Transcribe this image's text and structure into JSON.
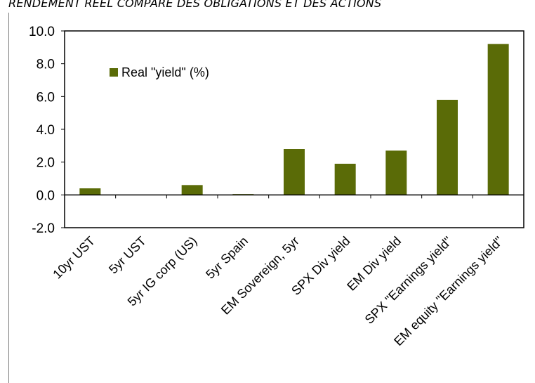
{
  "page": {
    "title": "RENDEMENT RÉEL COMPARÉ DES OBLIGATIONS ET DES ACTIONS"
  },
  "colors": {
    "bar": "#5a6b07",
    "axis": "#000000",
    "border": "#7f7f7f"
  },
  "chart_data": {
    "type": "bar",
    "title": "",
    "xlabel": "",
    "ylabel": "",
    "categories": [
      "10yr UST",
      "5yr UST",
      "5yr IG corp (US)",
      "5yr Spain",
      "EM Sovereign, 5yr",
      "SPX Div yield",
      "EM Div yield",
      "SPX \"Earnings yield\"",
      "EM equity \"Earnings yield\""
    ],
    "series": [
      {
        "name": "Real \"yield\" (%)",
        "values": [
          0.4,
          0.0,
          0.6,
          0.05,
          2.8,
          1.9,
          2.7,
          5.8,
          9.2
        ]
      }
    ],
    "ylim": [
      -2.0,
      10.0
    ],
    "yticks": [
      "10.0",
      "8.0",
      "6.0",
      "4.0",
      "2.0",
      "0.0",
      "-2.0"
    ],
    "grid": false,
    "legend": "top-left"
  }
}
